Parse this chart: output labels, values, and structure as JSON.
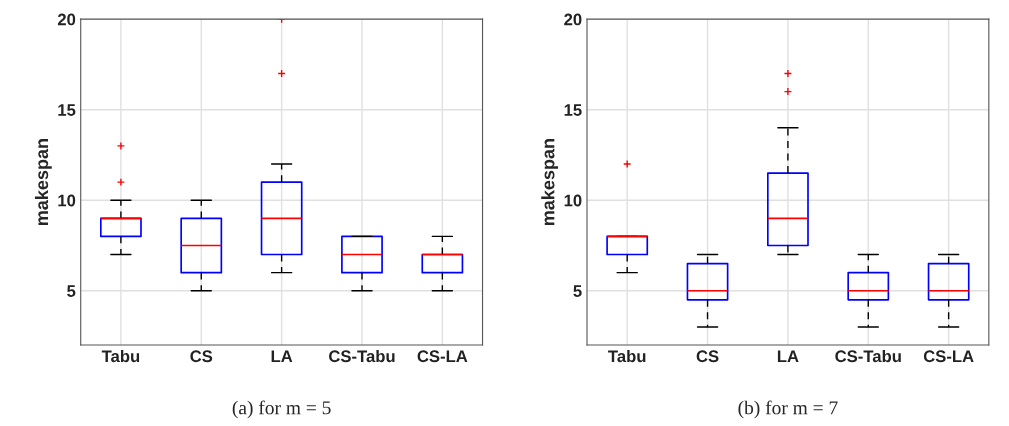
{
  "chart_data": [
    {
      "type": "box",
      "ylabel": "makespan",
      "categories": [
        "Tabu",
        "CS",
        "LA",
        "CS-Tabu",
        "CS-LA"
      ],
      "ylim": [
        2,
        20
      ],
      "yticks": [
        5,
        10,
        15,
        20
      ],
      "grid": true,
      "annotations": [
        "(a) for m = 5"
      ],
      "boxes": [
        {
          "low": 7,
          "q1": 8,
          "median": 9,
          "q3": 9,
          "high": 10,
          "outliers": [
            11,
            13
          ]
        },
        {
          "low": 5,
          "q1": 6,
          "median": 7.5,
          "q3": 9,
          "high": 10
        },
        {
          "low": 6,
          "q1": 7,
          "median": 9,
          "q3": 11,
          "high": 12,
          "outliers": [
            17,
            20
          ]
        },
        {
          "low": 5,
          "q1": 6,
          "median": 7,
          "q3": 8,
          "high": 8
        },
        {
          "low": 5,
          "q1": 6,
          "median": 7,
          "q3": 7,
          "high": 8
        }
      ]
    },
    {
      "type": "box",
      "ylabel": "makespan",
      "categories": [
        "Tabu",
        "CS",
        "LA",
        "CS-Tabu",
        "CS-LA"
      ],
      "ylim": [
        2,
        20
      ],
      "yticks": [
        5,
        10,
        15,
        20
      ],
      "grid": true,
      "annotations": [
        "(b) for m = 7"
      ],
      "boxes": [
        {
          "low": 6,
          "q1": 7,
          "median": 8,
          "q3": 8,
          "high": 8,
          "outliers": [
            12
          ]
        },
        {
          "low": 3,
          "q1": 4.5,
          "median": 5,
          "q3": 6.5,
          "high": 7
        },
        {
          "low": 7,
          "q1": 7.5,
          "median": 9,
          "q3": 11.5,
          "high": 14,
          "outliers": [
            16,
            17
          ]
        },
        {
          "low": 3,
          "q1": 4.5,
          "median": 5,
          "q3": 6,
          "high": 7
        },
        {
          "low": 3,
          "q1": 4.5,
          "median": 5,
          "q3": 6.5,
          "high": 7
        }
      ]
    }
  ]
}
